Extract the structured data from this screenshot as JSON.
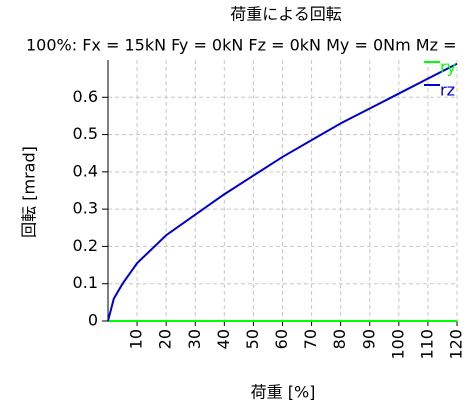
{
  "chart_data": {
    "type": "line",
    "title": "荷重による回転",
    "subtitle": "100%: Fx = 15kN Fy = 0kN Fz = 0kN My = 0Nm Mz =",
    "x_label": "荷重 [%]",
    "y_label": "回転 [mrad]",
    "x": [
      0,
      2,
      5,
      10,
      20,
      30,
      40,
      50,
      60,
      70,
      80,
      90,
      100,
      110,
      120
    ],
    "series": [
      {
        "name": "ry",
        "color": "#00ff00",
        "values": [
          0,
          0,
          0,
          0,
          0,
          0,
          0,
          0,
          0,
          0,
          0,
          0,
          0,
          0,
          0
        ]
      },
      {
        "name": "rz",
        "color": "#0000cc",
        "values": [
          0,
          0.06,
          0.1,
          0.155,
          0.23,
          0.285,
          0.34,
          0.39,
          0.44,
          0.485,
          0.53,
          0.57,
          0.61,
          0.65,
          0.69
        ]
      }
    ],
    "xlim": [
      0,
      120
    ],
    "xticks": [
      10,
      20,
      30,
      40,
      50,
      60,
      70,
      80,
      90,
      100,
      110,
      120
    ],
    "ylim": [
      0,
      0.7
    ],
    "yticks": [
      0,
      0.1,
      0.2,
      0.3,
      0.4,
      0.5,
      0.6
    ],
    "grid": true,
    "legend": "top-right"
  }
}
